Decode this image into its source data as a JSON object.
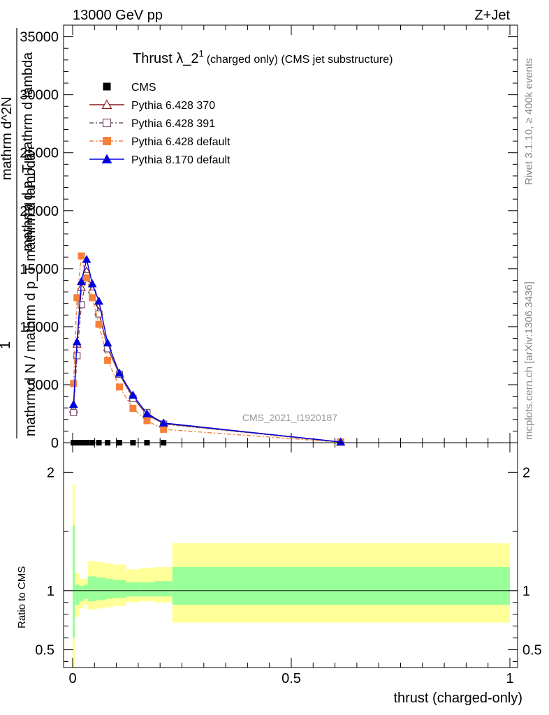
{
  "header": {
    "left": "13000 GeV pp",
    "right": "Z+Jet"
  },
  "side_text": {
    "rivet": "Rivet 3.1.10, ≥ 400k events",
    "mcplots": "mcplots.cern.ch [arXiv:1306.3436]"
  },
  "watermark": "CMS_2021_I1920187",
  "chart_data": [
    {
      "type": "line",
      "title": "Thrust λ_2",
      "title_sup": "1",
      "subtitle": "(charged only) (CMS jet substructure)",
      "ylabel_lines": [
        "mathrm d N / mathrm d p_T mathrm d lambda",
        "1",
        "mathrm d^2N",
        "mathrm d p_T mathrm d lambda"
      ],
      "xlim": [
        0,
        1
      ],
      "ylim": [
        0,
        36000
      ],
      "y_ticks": [
        0,
        5000,
        10000,
        15000,
        20000,
        25000,
        30000,
        35000
      ],
      "y_tick_labels": [
        "0",
        "5000",
        "10000",
        "15000",
        "20000",
        "25000",
        "30000",
        "35000"
      ],
      "grid": false,
      "legend_position": "top-left",
      "series": [
        {
          "name": "CMS",
          "color": "#000000",
          "marker": "square-filled",
          "line": "none",
          "x": [
            0.002,
            0.01,
            0.02,
            0.032,
            0.045,
            0.06,
            0.08,
            0.107,
            0.138,
            0.17,
            0.208
          ],
          "y": [
            0,
            0,
            0,
            0,
            0,
            0,
            0,
            0,
            0,
            0,
            0
          ]
        },
        {
          "name": "Pythia 6.428 370",
          "color": "#8b1a1a",
          "marker": "triangle-open",
          "line": "solid",
          "x": [
            0.002,
            0.01,
            0.02,
            0.032,
            0.045,
            0.06,
            0.08,
            0.107,
            0.138,
            0.17,
            0.208,
            0.613
          ],
          "y": [
            2900,
            8500,
            13400,
            14800,
            13200,
            11300,
            8200,
            5900,
            3900,
            2400,
            1650,
            60
          ]
        },
        {
          "name": "Pythia 6.428 391",
          "color": "#7a4f6a",
          "marker": "square-open",
          "line": "dashdot",
          "x": [
            0.002,
            0.01,
            0.02,
            0.032,
            0.045,
            0.06,
            0.08,
            0.107,
            0.138,
            0.17,
            0.208,
            0.613
          ],
          "y": [
            2600,
            7500,
            11900,
            14400,
            12900,
            11100,
            8100,
            5900,
            3800,
            2600,
            1600,
            50
          ]
        },
        {
          "name": "Pythia 6.428 default",
          "color": "#f5813a",
          "marker": "square-filled",
          "line": "dashdot",
          "x": [
            0.002,
            0.01,
            0.02,
            0.032,
            0.045,
            0.06,
            0.08,
            0.107,
            0.138,
            0.17,
            0.208,
            0.613
          ],
          "y": [
            5100,
            12500,
            16100,
            14200,
            12500,
            10200,
            7100,
            4800,
            2950,
            1900,
            1150,
            40
          ]
        },
        {
          "name": "Pythia 8.170 default",
          "color": "#0000e0",
          "marker": "triangle-filled",
          "line": "solid",
          "x": [
            0.002,
            0.01,
            0.02,
            0.032,
            0.045,
            0.06,
            0.08,
            0.107,
            0.138,
            0.17,
            0.208,
            0.613
          ],
          "y": [
            3300,
            8700,
            13900,
            15800,
            13700,
            12200,
            8600,
            6000,
            4100,
            2500,
            1700,
            60
          ]
        }
      ]
    },
    {
      "type": "area",
      "ylabel": "Ratio to CMS",
      "xlabel": "thrust (charged-only)",
      "xlim": [
        0,
        1
      ],
      "ylim": [
        0.35,
        2.25
      ],
      "x_ticks": [
        0,
        0.5,
        1
      ],
      "x_tick_labels": [
        "0",
        "0.5",
        "1"
      ],
      "y_ticks": [
        0.5,
        1,
        2
      ],
      "y_tick_labels": [
        "0.5",
        "1",
        "2"
      ],
      "reference_line": 1,
      "bands": [
        {
          "name": "",
          "color": "#ffff99",
          "bins": [
            [
              0.0,
              0.005,
              0.35,
              1.9
            ],
            [
              0.005,
              0.015,
              0.78,
              1.15
            ],
            [
              0.015,
              0.025,
              0.85,
              1.1
            ],
            [
              0.025,
              0.035,
              0.88,
              1.1
            ],
            [
              0.035,
              0.055,
              0.84,
              1.25
            ],
            [
              0.055,
              0.075,
              0.85,
              1.24
            ],
            [
              0.075,
              0.092,
              0.86,
              1.23
            ],
            [
              0.092,
              0.122,
              0.87,
              1.22
            ],
            [
              0.122,
              0.153,
              0.9,
              1.18
            ],
            [
              0.153,
              0.187,
              0.91,
              1.19
            ],
            [
              0.187,
              0.228,
              0.9,
              1.2
            ],
            [
              0.228,
              1.0,
              0.73,
              1.4
            ]
          ]
        },
        {
          "name": "",
          "color": "#99ff99",
          "bins": [
            [
              0.0,
              0.005,
              0.6,
              1.55
            ],
            [
              0.005,
              0.015,
              0.88,
              1.05
            ],
            [
              0.015,
              0.025,
              0.91,
              1.04
            ],
            [
              0.025,
              0.035,
              0.93,
              1.05
            ],
            [
              0.035,
              0.055,
              0.91,
              1.12
            ],
            [
              0.055,
              0.075,
              0.92,
              1.11
            ],
            [
              0.075,
              0.092,
              0.93,
              1.1
            ],
            [
              0.092,
              0.122,
              0.94,
              1.09
            ],
            [
              0.122,
              0.153,
              0.95,
              1.07
            ],
            [
              0.153,
              0.187,
              0.95,
              1.07
            ],
            [
              0.187,
              0.228,
              0.95,
              1.08
            ],
            [
              0.228,
              1.0,
              0.88,
              1.2
            ]
          ]
        }
      ]
    }
  ]
}
